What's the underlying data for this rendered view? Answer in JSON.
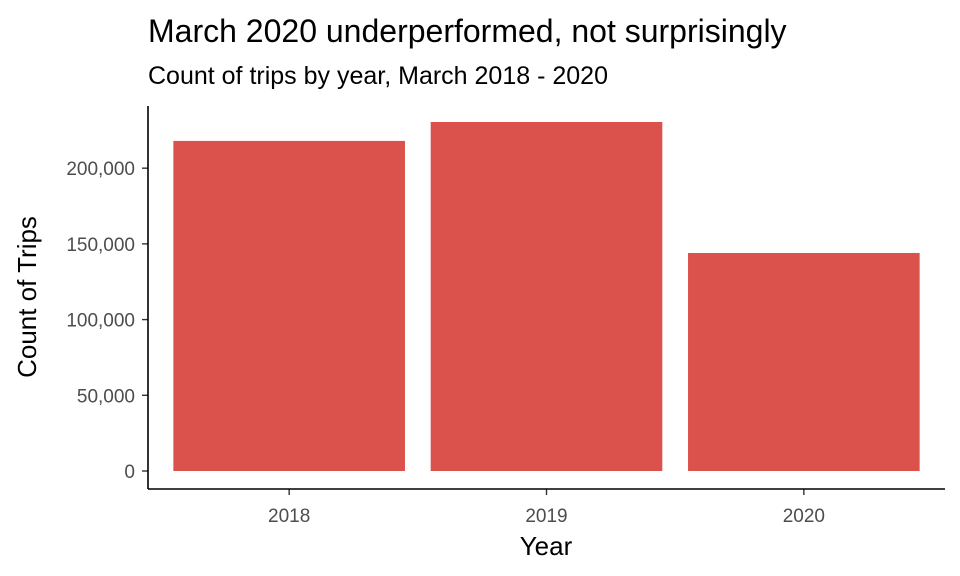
{
  "chart_data": {
    "type": "bar",
    "title": "March 2020 underperformed, not surprisingly",
    "subtitle": "Count of trips by year, March 2018 - 2020",
    "xlabel": "Year",
    "ylabel": "Count of Trips",
    "categories": [
      "2018",
      "2019",
      "2020"
    ],
    "values": [
      218000,
      230500,
      144000
    ],
    "ylim": [
      0,
      230500
    ],
    "yticks": [
      0,
      50000,
      100000,
      150000,
      200000
    ],
    "ytick_labels": [
      "0",
      "50,000",
      "100,000",
      "150,000",
      "200,000"
    ],
    "bar_color": "#db514c",
    "grid": false,
    "legend": "none"
  }
}
